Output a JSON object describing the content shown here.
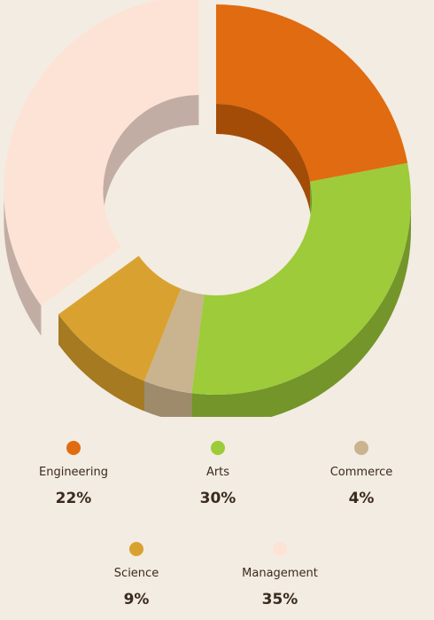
{
  "chart_data": {
    "type": "pie",
    "style": "3d-donut",
    "categories": [
      "Engineering",
      "Arts",
      "Commerce",
      "Science",
      "Management"
    ],
    "values": [
      22,
      30,
      4,
      9,
      35
    ],
    "value_labels": [
      "22%",
      "30%",
      "4%",
      "9%",
      "35%"
    ],
    "colors": [
      "#e06b10",
      "#9dcb3a",
      "#c9b48f",
      "#d9a230",
      "#fde3d6"
    ],
    "side_colors": [
      "#a34c08",
      "#73952a",
      "#9d8b6c",
      "#a67a21",
      "#c2ada4"
    ],
    "exploded": [
      "Management"
    ],
    "legend_position": "bottom"
  },
  "background": "#f3ece2"
}
